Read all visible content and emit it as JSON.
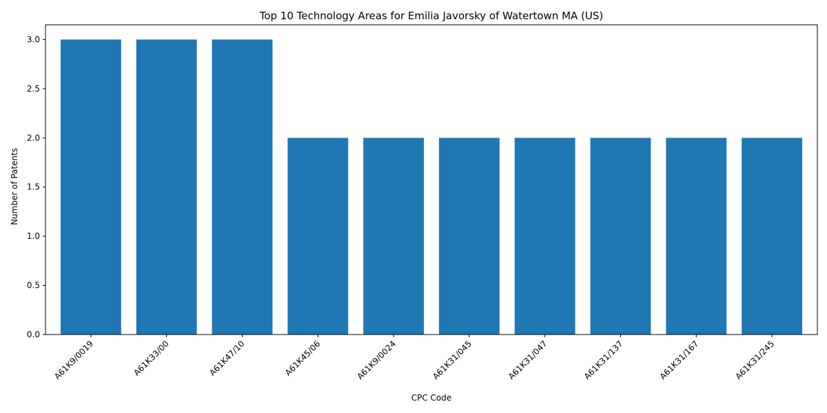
{
  "chart_data": {
    "type": "bar",
    "title": "Top 10 Technology Areas for Emilia Javorsky of Watertown MA (US)",
    "xlabel": "CPC Code",
    "ylabel": "Number of Patents",
    "categories": [
      "A61K9/0019",
      "A61K33/00",
      "A61K47/10",
      "A61K45/06",
      "A61K9/0024",
      "A61K31/045",
      "A61K31/047",
      "A61K31/137",
      "A61K31/167",
      "A61K31/245"
    ],
    "values": [
      3,
      3,
      3,
      2,
      2,
      2,
      2,
      2,
      2,
      2
    ],
    "ylim": [
      0,
      3.15
    ],
    "yticks": [
      0.0,
      0.5,
      1.0,
      1.5,
      2.0,
      2.5,
      3.0
    ],
    "ytick_labels": [
      "0.0",
      "0.5",
      "1.0",
      "1.5",
      "2.0",
      "2.5",
      "3.0"
    ],
    "bar_color": "#1f77b4",
    "grid": false,
    "legend": false
  }
}
